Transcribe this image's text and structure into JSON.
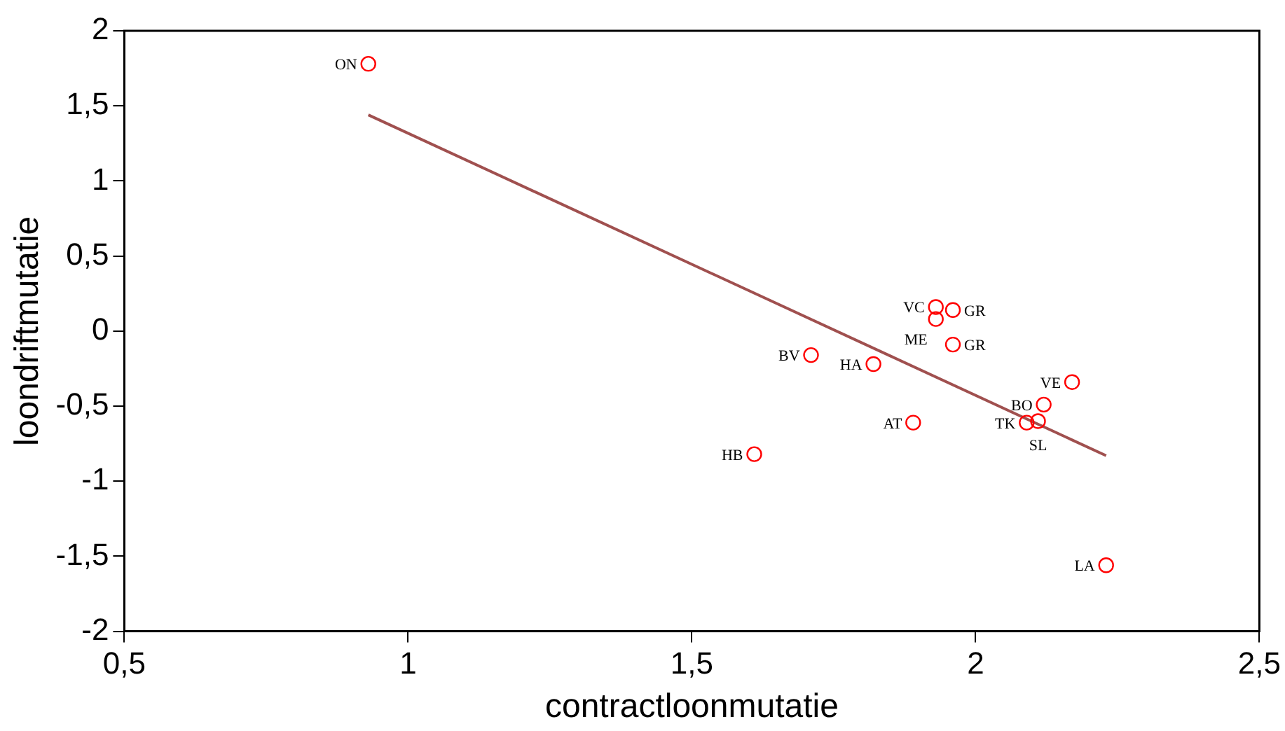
{
  "chart_data": {
    "type": "scatter",
    "xlabel": "contractloonmutatie",
    "ylabel": "loondriftmutatie",
    "xlim": [
      0.5,
      2.5
    ],
    "xticks": [
      {
        "value": 0.5,
        "label": "0,5"
      },
      1,
      {
        "value": 1.5,
        "label": "1,5"
      },
      2,
      {
        "value": 2.5,
        "label": "2,5"
      }
    ],
    "ylim": [
      -2,
      2
    ],
    "yticks": [
      -2,
      {
        "value": -1.5,
        "label": "-1,5"
      },
      -1,
      {
        "value": -0.5,
        "label": "-0,5"
      },
      0,
      {
        "value": 0.5,
        "label": "0,5"
      },
      1,
      {
        "value": 1.5,
        "label": "1,5"
      },
      2
    ],
    "grid": false,
    "legend": false,
    "marker": "circle",
    "series": [
      {
        "type": "scatter",
        "color": "#ff0000",
        "x": [
          0.93,
          1.93,
          1.93,
          1.96,
          1.96,
          1.71,
          1.82,
          1.89,
          2.09,
          2.11,
          2.12,
          2.17,
          1.61,
          2.23
        ],
        "values": [
          1.78,
          0.16,
          0.08,
          0.14,
          -0.09,
          -0.16,
          -0.22,
          -0.61,
          -0.61,
          -0.6,
          -0.49,
          -0.34,
          -0.82,
          -1.56
        ]
      },
      {
        "type": "line",
        "marker": "none",
        "color": "#a0504f",
        "x": [
          0.93,
          2.23
        ],
        "values": [
          1.44,
          -0.83
        ]
      }
    ],
    "annotations": [
      {
        "text": "ON",
        "x": 0.93,
        "y": 1.78
      },
      {
        "text": "VC",
        "x": 1.93,
        "y": 0.16
      },
      {
        "text": "ME",
        "x": 1.93,
        "y": 0.08
      },
      {
        "text": "GR",
        "x": 1.96,
        "y": 0.14
      },
      {
        "text": "GR",
        "x": 1.96,
        "y": -0.09
      },
      {
        "text": "BV",
        "x": 1.71,
        "y": -0.16
      },
      {
        "text": "HA",
        "x": 1.82,
        "y": -0.22
      },
      {
        "text": "AT",
        "x": 1.89,
        "y": -0.61
      },
      {
        "text": "TK",
        "x": 2.09,
        "y": -0.61
      },
      {
        "text": "SL",
        "x": 2.11,
        "y": -0.6
      },
      {
        "text": "BO",
        "x": 2.12,
        "y": -0.49
      },
      {
        "text": "VE",
        "x": 2.17,
        "y": -0.34
      },
      {
        "text": "HB",
        "x": 1.61,
        "y": -0.82
      },
      {
        "text": "LA",
        "x": 2.23,
        "y": -1.56
      }
    ]
  }
}
